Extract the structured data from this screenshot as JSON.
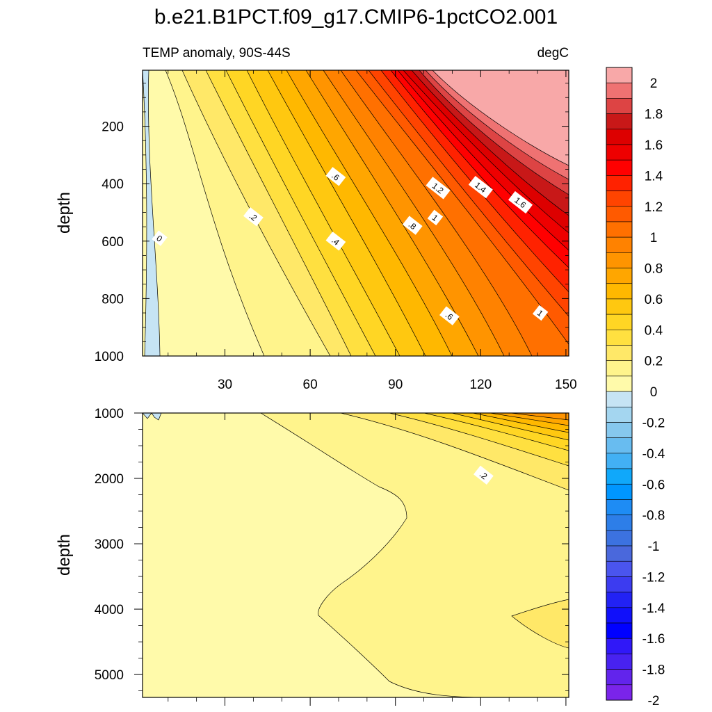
{
  "chart_data": [
    {
      "type": "contour",
      "title": "b.e21.B1PCT.f09_g17.CMIP6-1pctCO2.001",
      "left_string": "TEMP anomaly, 90S-44S",
      "right_string": "degC",
      "xlabel": "",
      "ylabel": "depth",
      "xlim": [
        1,
        151
      ],
      "ylim": [
        1000,
        5
      ],
      "xticks": [
        30,
        60,
        90,
        120,
        150
      ],
      "xtick_labels": [
        "30",
        "60",
        "90",
        "120",
        "150"
      ],
      "yticks": [
        200,
        400,
        600,
        800,
        1000
      ],
      "ytick_labels": [
        "200",
        "400",
        "600",
        "800",
        "1000"
      ],
      "contour_labels": [
        {
          "text": "0",
          "x": 7,
          "y": 590
        },
        {
          "text": ".2",
          "x": 40,
          "y": 515
        },
        {
          "text": ".4",
          "x": 69,
          "y": 600
        },
        {
          "text": ".6",
          "x": 69,
          "y": 375
        },
        {
          "text": ".8",
          "x": 96,
          "y": 545
        },
        {
          "text": "1",
          "x": 104,
          "y": 518
        },
        {
          "text": "1.2",
          "x": 105,
          "y": 415
        },
        {
          "text": "1.4",
          "x": 120,
          "y": 412
        },
        {
          "text": "1.6",
          "x": 134,
          "y": 465
        },
        {
          "text": ".6",
          "x": 109,
          "y": 860
        },
        {
          "text": "1",
          "x": 141,
          "y": 850
        }
      ]
    },
    {
      "type": "contour",
      "xlabel": "",
      "ylabel": "depth",
      "xlim": [
        1,
        151
      ],
      "ylim": [
        5350,
        1000
      ],
      "xticks": [
        30,
        60,
        90,
        120,
        150
      ],
      "yticks": [
        1000,
        2000,
        3000,
        4000,
        5000
      ],
      "ytick_labels": [
        "1000",
        "2000",
        "3000",
        "4000",
        "5000"
      ],
      "contour_labels": [
        {
          "text": ".2",
          "x": 121,
          "y": 1950
        }
      ]
    }
  ],
  "colorbar": {
    "levels": [
      -2.1,
      -2,
      -1.9,
      -1.8,
      -1.7,
      -1.6,
      -1.5,
      -1.4,
      -1.3,
      -1.2,
      -1.1,
      -1,
      -0.9,
      -0.8,
      -0.7,
      -0.6,
      -0.5,
      -0.4,
      -0.3,
      -0.2,
      -0.1,
      0,
      0.1,
      0.2,
      0.3,
      0.4,
      0.5,
      0.6,
      0.7,
      0.8,
      0.9,
      1,
      1.1,
      1.2,
      1.3,
      1.4,
      1.5,
      1.6,
      1.7,
      1.8,
      1.9,
      2,
      2.1
    ],
    "colors": [
      "#f8a8a8",
      "#ef7272",
      "#dd4444",
      "#c81818",
      "#dd0000",
      "#ee0000",
      "#ff0000",
      "#ff2200",
      "#ff4400",
      "#ff5a00",
      "#ff7000",
      "#ff8200",
      "#ff9400",
      "#ffa600",
      "#ffb800",
      "#ffc810",
      "#ffd624",
      "#ffe040",
      "#ffe868",
      "#fff48c",
      "#fffaaa",
      "#c6e4f4",
      "#a4d6f0",
      "#86c8ee",
      "#68bcf0",
      "#42b0f4",
      "#10a8fa",
      "#0096ff",
      "#1e8cf4",
      "#2d7ee8",
      "#3c72e0",
      "#4a68dc",
      "#4a55ee",
      "#3c3cf0",
      "#2222f4",
      "#1010fa",
      "#0000ff",
      "#3018f8",
      "#4822f0",
      "#6224ec",
      "#7a24ea"
    ],
    "labels": [
      "2",
      "1.8",
      "1.6",
      "1.4",
      "1.2",
      "1",
      "0.8",
      "0.6",
      "0.4",
      "0.2",
      "0",
      "-0.2",
      "-0.4",
      "-0.6",
      "-0.8",
      "-1",
      "-1.2",
      "-1.4",
      "-1.6",
      "-1.8",
      "-2"
    ]
  }
}
